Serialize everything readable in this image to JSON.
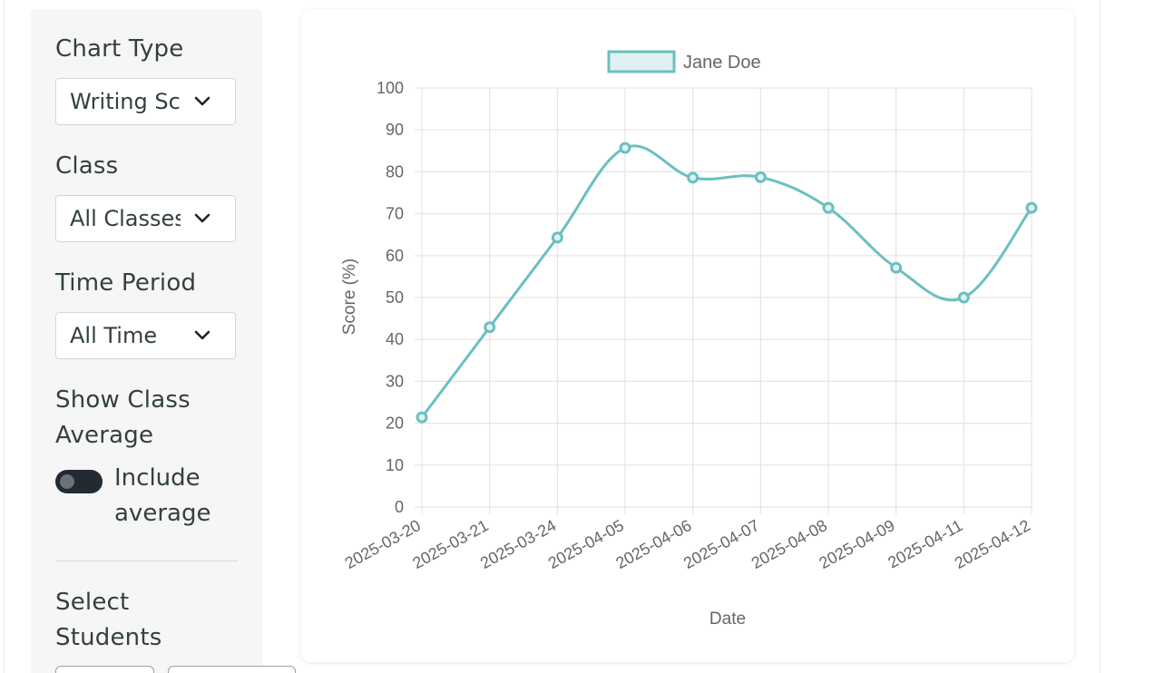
{
  "sidebar": {
    "chart_type": {
      "label": "Chart Type",
      "value": "Writing Score"
    },
    "class": {
      "label": "Class",
      "value": "All Classes"
    },
    "time_period": {
      "label": "Time Period",
      "value": "All Time"
    },
    "class_average": {
      "label": "Show Class Average",
      "toggle_label": "Include average",
      "enabled": false
    },
    "select_students": {
      "label": "Select Students"
    }
  },
  "colors": {
    "series": "#6cbfbf",
    "series_fill": "#dff1f1",
    "grid": "#e5e5e5",
    "text": "#666666",
    "toggle": "#222a33"
  },
  "chart_data": {
    "type": "line",
    "xlabel": "Date",
    "ylabel": "Score (%)",
    "ylim": [
      0,
      100
    ],
    "yticks": [
      0,
      10,
      20,
      30,
      40,
      50,
      60,
      70,
      80,
      90,
      100
    ],
    "legend_position": "top",
    "grid": true,
    "categories": [
      "2025-03-20",
      "2025-03-21",
      "2025-03-24",
      "2025-04-05",
      "2025-04-06",
      "2025-04-07",
      "2025-04-08",
      "2025-04-09",
      "2025-04-11",
      "2025-04-12"
    ],
    "series": [
      {
        "name": "Jane Doe",
        "values": [
          21.4,
          42.9,
          64.3,
          85.7,
          78.6,
          78.7,
          71.4,
          57.1,
          50.0,
          71.4
        ]
      }
    ]
  }
}
